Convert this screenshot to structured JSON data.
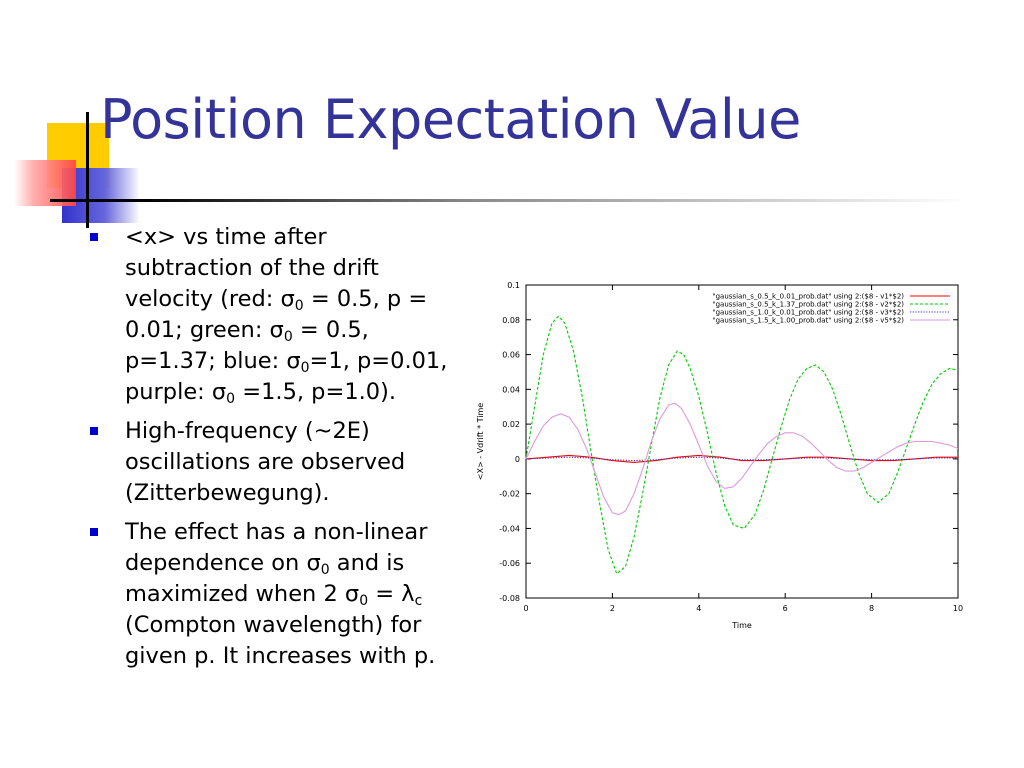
{
  "slide": {
    "title": "Position Expectation Value",
    "bullets": [
      {
        "segments": [
          {
            "t": "<x> vs time after subtraction of the drift velocity (red: σ"
          },
          {
            "t": "0",
            "sub": true
          },
          {
            "t": " = 0.5, p = 0.01; green: σ"
          },
          {
            "t": "0",
            "sub": true
          },
          {
            "t": " = 0.5, p=1.37; blue: σ"
          },
          {
            "t": "0",
            "sub": true
          },
          {
            "t": "=1, p=0.01, purple: σ"
          },
          {
            "t": "0",
            "sub": true
          },
          {
            "t": " =1.5, p=1.0)."
          }
        ]
      },
      {
        "segments": [
          {
            "t": "High-frequency (~2E) oscillations are observed (Zitterbewegung)."
          }
        ]
      },
      {
        "segments": [
          {
            "t": "The effect has a non-linear dependence on σ"
          },
          {
            "t": "0",
            "sub": true
          },
          {
            "t": " and is maximized when 2 σ"
          },
          {
            "t": "0",
            "sub": true
          },
          {
            "t": " = λ"
          },
          {
            "t": "c",
            "sub": true
          },
          {
            "t": " (Compton wavelength) for given p. It increases with p."
          }
        ]
      }
    ]
  },
  "colors": {
    "title": "#333399",
    "bullet": "#0000cc",
    "deco_yellow": "#ffcc00",
    "deco_red": "#ff5555",
    "deco_blue": "#3333cc"
  },
  "chart_data": {
    "type": "line",
    "xlabel": "Time",
    "ylabel": "<X> - Vdrift * Time",
    "xlim": [
      0,
      10
    ],
    "ylim": [
      -0.08,
      0.1
    ],
    "xticks": [
      0,
      2,
      4,
      6,
      8,
      10
    ],
    "yticks": [
      -0.08,
      -0.06,
      -0.04,
      -0.02,
      0,
      0.02,
      0.04,
      0.06,
      0.08,
      0.1
    ],
    "ytick_labels": [
      "-0.08",
      "-0.06",
      "-0.04",
      "-0.02",
      "0",
      "0.02",
      "0.04",
      "0.06",
      "0.08",
      "0.1"
    ],
    "legend_position": "top-right",
    "series": [
      {
        "name": "\"gaussian_s_0.5_k_0.01_prob.dat\" using 2:($8 - v1*$2)",
        "color": "#ff0000",
        "dash": "solid",
        "x": [
          0,
          0.5,
          1,
          1.5,
          2,
          2.5,
          3,
          3.5,
          4,
          4.5,
          5,
          5.5,
          6,
          6.5,
          7,
          7.5,
          8,
          8.5,
          9,
          9.5,
          10
        ],
        "y": [
          0,
          0.001,
          0.002,
          0.001,
          -0.001,
          -0.002,
          -0.001,
          0.001,
          0.002,
          0.001,
          -0.001,
          -0.001,
          0,
          0.001,
          0.001,
          0,
          -0.001,
          -0.001,
          0,
          0.001,
          0.001
        ]
      },
      {
        "name": "\"gaussian_s_0.5_k_1.37_prob.dat\" using 2:($8 - v2*$2)",
        "color": "#00cc00",
        "dash": "dashed",
        "x": [
          0,
          0.2,
          0.4,
          0.6,
          0.75,
          0.9,
          1.1,
          1.3,
          1.5,
          1.7,
          1.9,
          2.1,
          2.3,
          2.5,
          2.7,
          2.9,
          3.1,
          3.3,
          3.5,
          3.65,
          3.8,
          4.0,
          4.2,
          4.4,
          4.6,
          4.8,
          5.05,
          5.3,
          5.5,
          5.7,
          5.9,
          6.1,
          6.3,
          6.5,
          6.7,
          6.9,
          7.1,
          7.3,
          7.5,
          7.7,
          7.9,
          8.15,
          8.4,
          8.6,
          8.8,
          9.0,
          9.2,
          9.4,
          9.6,
          9.8,
          10
        ],
        "y": [
          0.0,
          0.03,
          0.06,
          0.078,
          0.082,
          0.078,
          0.062,
          0.036,
          0.005,
          -0.025,
          -0.052,
          -0.066,
          -0.062,
          -0.045,
          -0.02,
          0.008,
          0.035,
          0.054,
          0.062,
          0.06,
          0.052,
          0.036,
          0.015,
          -0.008,
          -0.027,
          -0.038,
          -0.04,
          -0.032,
          -0.018,
          0.0,
          0.018,
          0.034,
          0.046,
          0.052,
          0.054,
          0.05,
          0.04,
          0.025,
          0.008,
          -0.008,
          -0.02,
          -0.025,
          -0.02,
          -0.008,
          0.006,
          0.02,
          0.033,
          0.043,
          0.049,
          0.052,
          0.051
        ]
      },
      {
        "name": "\"gaussian_s_1.0_k_0.01_prob.dat\" using 2:($8 - v3*$2)",
        "color": "#3333cc",
        "dash": "dotted",
        "x": [
          0,
          0.5,
          1,
          1.5,
          2,
          2.5,
          3,
          3.5,
          4,
          4.5,
          5,
          5.5,
          6,
          6.5,
          7,
          7.5,
          8,
          8.5,
          9,
          9.5,
          10
        ],
        "y": [
          0,
          0.0005,
          0.001,
          0.0005,
          -0.0005,
          -0.001,
          -0.0005,
          0.0005,
          0.001,
          0.0005,
          -0.0005,
          -0.0005,
          0,
          0.0005,
          0.0005,
          0,
          -0.0005,
          -0.0005,
          0,
          0.0005,
          0.0005
        ]
      },
      {
        "name": "\"gaussian_s_1.5_k_1.00_prob.dat\" using 2:($8 - v5*$2)",
        "color": "#dd99dd",
        "dash": "solid",
        "x": [
          0,
          0.2,
          0.4,
          0.6,
          0.8,
          1.0,
          1.2,
          1.4,
          1.6,
          1.8,
          2.0,
          2.15,
          2.3,
          2.5,
          2.7,
          2.9,
          3.1,
          3.3,
          3.45,
          3.6,
          3.8,
          4.0,
          4.2,
          4.4,
          4.6,
          4.8,
          5.0,
          5.2,
          5.4,
          5.6,
          5.8,
          6.0,
          6.2,
          6.4,
          6.6,
          6.8,
          7.0,
          7.2,
          7.4,
          7.6,
          7.8,
          8.0,
          8.2,
          8.4,
          8.6,
          8.8,
          9.0,
          9.2,
          9.4,
          9.6,
          9.8,
          10
        ],
        "y": [
          0,
          0.01,
          0.019,
          0.024,
          0.026,
          0.024,
          0.017,
          0.006,
          -0.008,
          -0.022,
          -0.031,
          -0.032,
          -0.03,
          -0.02,
          -0.006,
          0.01,
          0.023,
          0.031,
          0.032,
          0.029,
          0.02,
          0.008,
          -0.004,
          -0.013,
          -0.017,
          -0.016,
          -0.011,
          -0.004,
          0.003,
          0.009,
          0.013,
          0.015,
          0.015,
          0.013,
          0.009,
          0.004,
          -0.001,
          -0.005,
          -0.007,
          -0.007,
          -0.005,
          -0.002,
          0.001,
          0.004,
          0.007,
          0.009,
          0.01,
          0.01,
          0.01,
          0.009,
          0.008,
          0.006
        ]
      }
    ]
  }
}
